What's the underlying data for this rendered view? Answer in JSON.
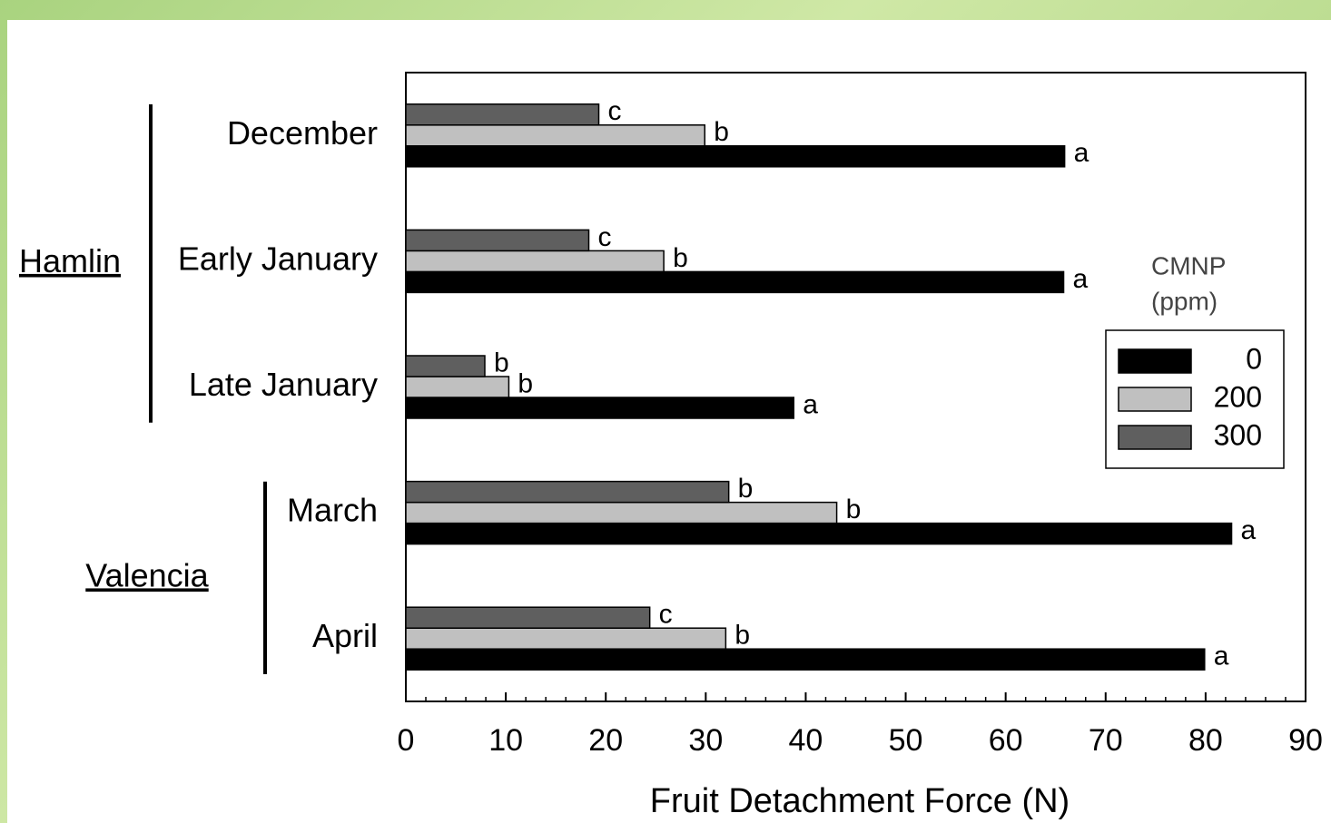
{
  "chart_data": {
    "type": "barh",
    "xlabel": "Fruit Detachment Force (N)",
    "categories": [
      "December",
      "Early January",
      "Late January",
      "March",
      "April"
    ],
    "groups": [
      {
        "name": "Hamlin",
        "size": 3
      },
      {
        "name": "Valencia",
        "size": 2
      }
    ],
    "legend_title": [
      "CMNP",
      "(ppm)"
    ],
    "series": [
      {
        "name": "0",
        "color": "#000000",
        "values": [
          65.9,
          65.8,
          38.8,
          82.6,
          79.9
        ],
        "labels": [
          "a",
          "a",
          "a",
          "a",
          "a"
        ]
      },
      {
        "name": "200",
        "color": "#c0c0c0",
        "values": [
          29.9,
          25.8,
          10.3,
          43.1,
          32.0
        ],
        "labels": [
          "b",
          "b",
          "b",
          "b",
          "b"
        ]
      },
      {
        "name": "300",
        "color": "#5f5f5f",
        "values": [
          19.3,
          18.3,
          7.9,
          32.3,
          24.4
        ],
        "labels": [
          "c",
          "c",
          "b",
          "b",
          "c"
        ]
      }
    ],
    "xlim": [
      0,
      90
    ],
    "xticks": [
      0,
      10,
      20,
      30,
      40,
      50,
      60,
      70,
      80,
      90
    ],
    "minor_tick_step": 2
  }
}
